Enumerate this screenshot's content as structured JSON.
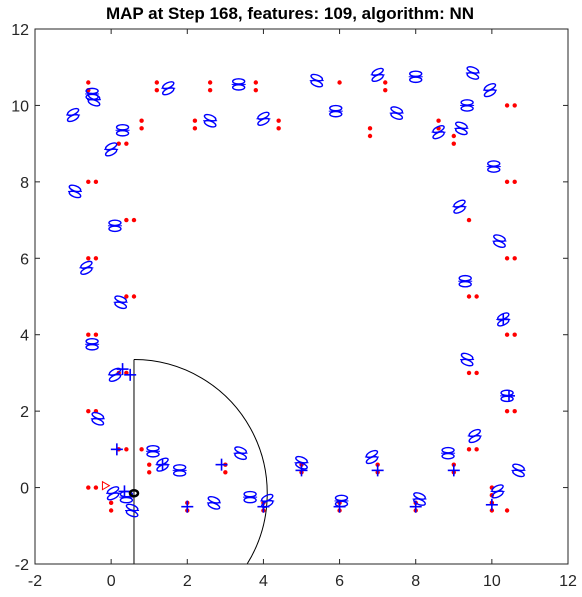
{
  "chart_data": {
    "type": "scatter",
    "title": "MAP at Step 168, features: 109, algorithm: NN",
    "xlabel": "",
    "ylabel": "",
    "xlim": [
      -2,
      12
    ],
    "ylim": [
      -2,
      12
    ],
    "xticks": [
      "-2",
      "0",
      "2",
      "4",
      "6",
      "8",
      "10",
      "12"
    ],
    "yticks": [
      "-2",
      "0",
      "2",
      "4",
      "6",
      "8",
      "10",
      "12"
    ],
    "grid": false,
    "colors": {
      "estimate": "#0000ff",
      "landmark": "#ff0000",
      "robot": "#000000",
      "sensor_range": "#000000"
    },
    "landmarks": [
      [
        -0.6,
        10.6
      ],
      [
        -0.6,
        10.4
      ],
      [
        1.2,
        10.6
      ],
      [
        1.2,
        10.4
      ],
      [
        2.6,
        10.6
      ],
      [
        2.6,
        10.4
      ],
      [
        3.8,
        10.6
      ],
      [
        3.8,
        10.4
      ],
      [
        6.0,
        10.6
      ],
      [
        7.2,
        10.6
      ],
      [
        7.2,
        10.4
      ],
      [
        0.8,
        9.6
      ],
      [
        0.8,
        9.4
      ],
      [
        2.2,
        9.6
      ],
      [
        2.2,
        9.4
      ],
      [
        4.4,
        9.6
      ],
      [
        4.4,
        9.4
      ],
      [
        6.8,
        9.4
      ],
      [
        6.8,
        9.2
      ],
      [
        8.6,
        9.6
      ],
      [
        8.6,
        9.4
      ],
      [
        9.0,
        9.2
      ],
      [
        9.0,
        9.0
      ],
      [
        10.6,
        10.0
      ],
      [
        10.4,
        10.0
      ],
      [
        0.4,
        9.0
      ],
      [
        0.2,
        9.0
      ],
      [
        -0.4,
        8.0
      ],
      [
        -0.6,
        8.0
      ],
      [
        10.6,
        8.0
      ],
      [
        10.4,
        8.0
      ],
      [
        0.6,
        7.0
      ],
      [
        0.4,
        7.0
      ],
      [
        9.4,
        7.0
      ],
      [
        -0.4,
        6.0
      ],
      [
        -0.6,
        6.0
      ],
      [
        10.6,
        6.0
      ],
      [
        10.4,
        6.0
      ],
      [
        0.6,
        5.0
      ],
      [
        0.4,
        5.0
      ],
      [
        9.4,
        5.0
      ],
      [
        9.6,
        5.0
      ],
      [
        -0.4,
        4.0
      ],
      [
        -0.6,
        4.0
      ],
      [
        10.6,
        4.0
      ],
      [
        10.4,
        4.0
      ],
      [
        0.2,
        3.0
      ],
      [
        0.4,
        3.0
      ],
      [
        9.4,
        3.0
      ],
      [
        9.6,
        3.0
      ],
      [
        -0.4,
        2.0
      ],
      [
        -0.6,
        2.0
      ],
      [
        10.6,
        2.0
      ],
      [
        10.4,
        2.0
      ],
      [
        0.2,
        1.0
      ],
      [
        0.4,
        1.0
      ],
      [
        9.4,
        1.0
      ],
      [
        9.6,
        1.0
      ],
      [
        -0.6,
        0.0
      ],
      [
        -0.4,
        0.0
      ],
      [
        0.0,
        -0.4
      ],
      [
        0.0,
        -0.6
      ],
      [
        1.0,
        0.6
      ],
      [
        1.0,
        0.4
      ],
      [
        2.0,
        -0.4
      ],
      [
        2.0,
        -0.6
      ],
      [
        3.0,
        0.6
      ],
      [
        3.0,
        0.4
      ],
      [
        4.0,
        -0.4
      ],
      [
        4.0,
        -0.6
      ],
      [
        5.0,
        0.6
      ],
      [
        5.0,
        0.4
      ],
      [
        6.0,
        -0.4
      ],
      [
        6.0,
        -0.6
      ],
      [
        7.0,
        0.6
      ],
      [
        7.0,
        0.4
      ],
      [
        8.0,
        -0.4
      ],
      [
        8.0,
        -0.6
      ],
      [
        9.0,
        0.6
      ],
      [
        9.0,
        0.4
      ],
      [
        10.0,
        0.0
      ],
      [
        10.0,
        -0.2
      ],
      [
        10.0,
        -0.4
      ],
      [
        10.0,
        -0.6
      ],
      [
        10.4,
        -0.6
      ],
      [
        0.8,
        1.0
      ]
    ],
    "ellipse_estimates": [
      [
        -1.0,
        9.75
      ],
      [
        -0.5,
        10.3
      ],
      [
        -0.45,
        10.15
      ],
      [
        1.5,
        10.45
      ],
      [
        3.35,
        10.55
      ],
      [
        5.4,
        10.65
      ],
      [
        7.0,
        10.8
      ],
      [
        8.0,
        10.75
      ],
      [
        9.5,
        10.85
      ],
      [
        9.95,
        10.4
      ],
      [
        0.3,
        9.35
      ],
      [
        2.6,
        9.6
      ],
      [
        4.0,
        9.65
      ],
      [
        5.9,
        9.85
      ],
      [
        7.5,
        9.8
      ],
      [
        8.6,
        9.3
      ],
      [
        9.35,
        10.0
      ],
      [
        9.2,
        9.4
      ],
      [
        0.0,
        8.85
      ],
      [
        10.05,
        8.4
      ],
      [
        -0.95,
        7.75
      ],
      [
        9.15,
        7.35
      ],
      [
        0.1,
        6.85
      ],
      [
        10.2,
        6.45
      ],
      [
        -0.65,
        5.75
      ],
      [
        9.3,
        5.4
      ],
      [
        0.25,
        4.85
      ],
      [
        10.3,
        4.4
      ],
      [
        -0.5,
        3.75
      ],
      [
        9.35,
        3.35
      ],
      [
        0.1,
        2.95
      ],
      [
        10.4,
        2.4
      ],
      [
        -0.35,
        1.8
      ],
      [
        9.55,
        1.35
      ],
      [
        1.1,
        0.95
      ],
      [
        3.4,
        0.9
      ],
      [
        0.05,
        -0.15
      ],
      [
        0.4,
        -0.25
      ],
      [
        0.55,
        -0.6
      ],
      [
        1.35,
        0.6
      ],
      [
        3.65,
        -0.25
      ],
      [
        5.0,
        0.65
      ],
      [
        6.85,
        0.8
      ],
      [
        8.85,
        0.9
      ],
      [
        10.7,
        0.45
      ],
      [
        10.15,
        -0.1
      ],
      [
        1.8,
        0.45
      ],
      [
        2.7,
        -0.4
      ],
      [
        4.1,
        -0.35
      ],
      [
        6.05,
        -0.35
      ],
      [
        8.1,
        -0.3
      ]
    ],
    "plus_estimates": [
      [
        0.3,
        3.1
      ],
      [
        0.15,
        1.0
      ],
      [
        0.35,
        -0.1
      ],
      [
        1.35,
        0.6
      ],
      [
        2.0,
        -0.5
      ],
      [
        2.9,
        0.6
      ],
      [
        4.0,
        -0.5
      ],
      [
        5.0,
        0.45
      ],
      [
        6.0,
        -0.5
      ],
      [
        7.0,
        0.45
      ],
      [
        8.0,
        -0.5
      ],
      [
        9.0,
        0.45
      ],
      [
        10.0,
        -0.45
      ],
      [
        10.45,
        2.4
      ],
      [
        10.3,
        4.4
      ],
      [
        0.5,
        2.95
      ]
    ],
    "robot": {
      "x": 0.6,
      "y": -0.15,
      "heading_deg": 90
    },
    "sensor_range": {
      "radius": 3.5
    },
    "robot_pointer": {
      "x": -0.15,
      "y": 0.05
    }
  }
}
